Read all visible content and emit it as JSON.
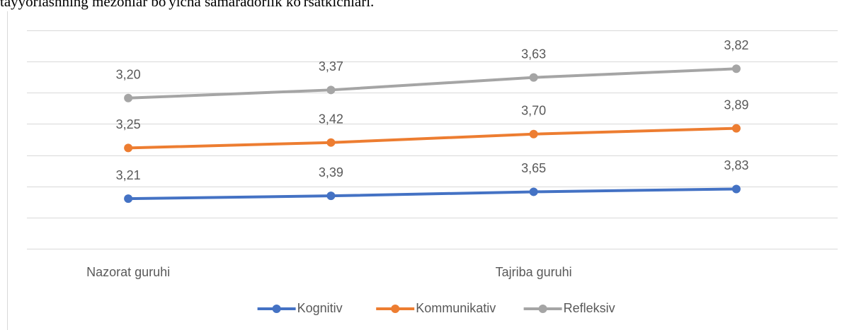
{
  "chart_data": {
    "type": "line",
    "stacked": true,
    "title": "tayyorlashning mezonlar bo'yicha samaradorlik ko'rsatkichlari.",
    "categories": [
      "Nazorat guruhi",
      null,
      "Tajriba guruhi",
      null
    ],
    "series": [
      {
        "name": "Kognitiv",
        "color": "#4472c4",
        "values": [
          3.21,
          3.39,
          3.65,
          3.83
        ],
        "value_labels": [
          "3,21",
          "3,39",
          "3,65",
          "3,83"
        ]
      },
      {
        "name": "Kommunikativ",
        "color": "#ed7d31",
        "values": [
          3.25,
          3.42,
          3.7,
          3.89
        ],
        "value_labels": [
          "3,25",
          "3,42",
          "3,70",
          "3,89"
        ]
      },
      {
        "name": "Refleksiv",
        "color": "#a5a5a5",
        "values": [
          3.2,
          3.37,
          3.63,
          3.82
        ],
        "value_labels": [
          "3,20",
          "3,37",
          "3,63",
          "3,82"
        ]
      }
    ],
    "ylim": [
      0,
      14
    ],
    "yticks": [
      0,
      2,
      4,
      6,
      8,
      10,
      12,
      14
    ],
    "grid": true,
    "legend": "bottom"
  }
}
